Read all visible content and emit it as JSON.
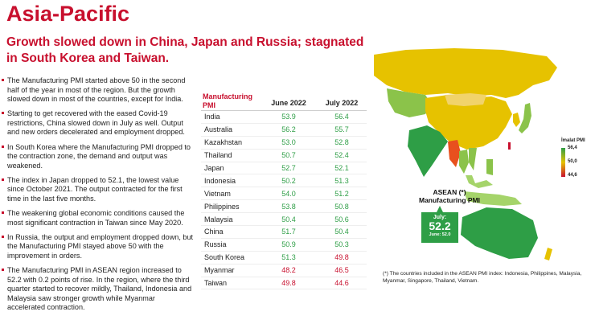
{
  "title": "Asia-Pacific",
  "subtitle": "Growth slowed down in China, Japan and Russia; stagnated in South Korea and Taiwan.",
  "bullets": [
    "The Manufacturing PMI started above 50 in the second half of the year in most of the region. But the growth slowed down in most of the countries, except for India.",
    "Starting to get recovered with the eased Covid-19 restrictions, China slowed down in July as well. Output and new orders decelerated and employment dropped.",
    "In South Korea where the Manufacturing PMI dropped to the contraction zone, the demand and output was weakened.",
    "The index in Japan dropped to 52.1, the lowest value since October 2021. The output contracted for the first time in the last five months.",
    "The weakening global economic conditions caused the most significant contraction in Taiwan since May 2020.",
    "In Russia, the output and employment dropped down, but the Manufacturing PMI stayed above 50 with the improvement in orders.",
    "The Manufacturing PMI in ASEAN region increased to 52.2 with 0.2 points of rise. In the region, where the third quarter started to recover mildly, Thailand, Indonesia and Malaysia saw stronger growth while Myanmar accelerated contraction."
  ],
  "table": {
    "header_label": "Manufacturing PMI",
    "col1": "June 2022",
    "col2": "July 2022",
    "rows": [
      {
        "country": "India",
        "june": "53.9",
        "july": "56.4",
        "june_color": "#2e9e46",
        "july_color": "#2e9e46"
      },
      {
        "country": "Australia",
        "june": "56.2",
        "july": "55.7",
        "june_color": "#2e9e46",
        "july_color": "#2e9e46"
      },
      {
        "country": "Kazakhstan",
        "june": "53.0",
        "july": "52.8",
        "june_color": "#2e9e46",
        "july_color": "#2e9e46"
      },
      {
        "country": "Thailand",
        "june": "50.7",
        "july": "52.4",
        "june_color": "#2e9e46",
        "july_color": "#2e9e46"
      },
      {
        "country": "Japan",
        "june": "52.7",
        "july": "52.1",
        "june_color": "#2e9e46",
        "july_color": "#2e9e46"
      },
      {
        "country": "Indonesia",
        "june": "50.2",
        "july": "51.3",
        "june_color": "#2e9e46",
        "july_color": "#2e9e46"
      },
      {
        "country": "Vietnam",
        "june": "54.0",
        "july": "51.2",
        "june_color": "#2e9e46",
        "july_color": "#2e9e46"
      },
      {
        "country": "Philippines",
        "june": "53.8",
        "july": "50.8",
        "june_color": "#2e9e46",
        "july_color": "#2e9e46"
      },
      {
        "country": "Malaysia",
        "june": "50.4",
        "july": "50.6",
        "june_color": "#2e9e46",
        "july_color": "#2e9e46"
      },
      {
        "country": "China",
        "june": "51.7",
        "july": "50.4",
        "june_color": "#2e9e46",
        "july_color": "#2e9e46"
      },
      {
        "country": "Russia",
        "june": "50.9",
        "july": "50.3",
        "june_color": "#2e9e46",
        "july_color": "#2e9e46"
      },
      {
        "country": "South Korea",
        "june": "51.3",
        "july": "49.8",
        "june_color": "#2e9e46",
        "july_color": "#c8102e"
      },
      {
        "country": "Myanmar",
        "june": "48.2",
        "july": "46.5",
        "june_color": "#c8102e",
        "july_color": "#c8102e"
      },
      {
        "country": "Taiwan",
        "june": "49.8",
        "july": "44.6",
        "june_color": "#c8102e",
        "july_color": "#c8102e"
      }
    ]
  },
  "legend": {
    "title": "İmalat PMI",
    "high": "56,4",
    "mid": "50,0",
    "low": "44,6"
  },
  "asean": {
    "title": "ASEAN (*) Manufacturing PMI",
    "month": "July:",
    "value": "52.2",
    "prev": "June: 52.0"
  },
  "footnote": "(*) The countries included in the ASEAN PMI index: Indonesia, Philippines, Malaysia, Myanmar, Singapore, Thailand, Vietnam.",
  "colors": {
    "accent": "#c8102e",
    "growth": "#2e9e46",
    "mid": "#e6c200"
  }
}
